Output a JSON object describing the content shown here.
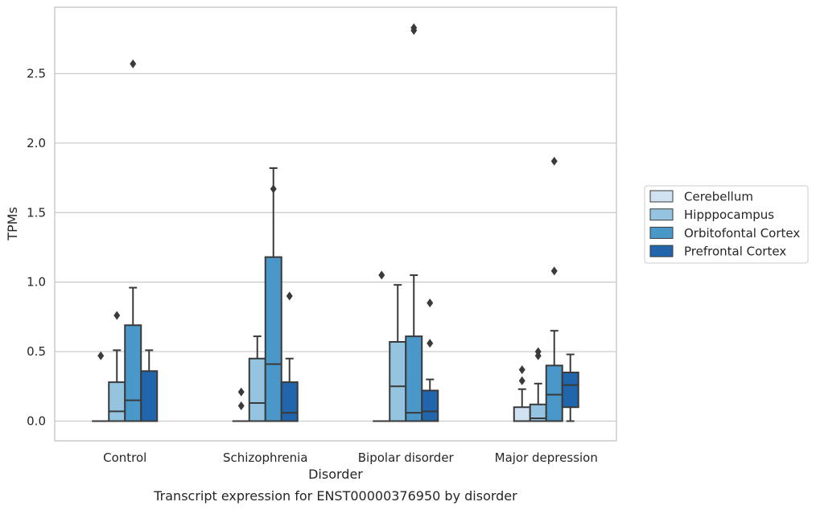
{
  "chart_data": {
    "type": "box",
    "title": "",
    "caption": "Transcript expression for ENST00000376950 by disorder",
    "xlabel": "Disorder",
    "ylabel": "TPMs",
    "ylim": [
      -0.14,
      2.99
    ],
    "yticks": [
      "0.0",
      "0.5",
      "1.0",
      "1.5",
      "2.0",
      "2.5"
    ],
    "grid": true,
    "legend_position": "right",
    "categories": [
      "Control",
      "Schizophrenia",
      "Bipolar disorder",
      "Major depression"
    ],
    "series": [
      {
        "name": "Cerebellum",
        "color": "#d0e1f2",
        "boxes": [
          {
            "min": 0,
            "q1": 0,
            "median": 0,
            "q3": 0,
            "max": 0,
            "outliers": [
              0.47
            ]
          },
          {
            "min": 0,
            "q1": 0,
            "median": 0,
            "q3": 0,
            "max": 0,
            "outliers": [
              0.21,
              0.11
            ]
          },
          {
            "min": 0,
            "q1": 0,
            "median": 0,
            "q3": 0,
            "max": 0,
            "outliers": [
              1.05
            ]
          },
          {
            "min": 0,
            "q1": 0,
            "median": 0.0,
            "q3": 0.1,
            "max": 0.23,
            "outliers": [
              0.37,
              0.29
            ]
          }
        ]
      },
      {
        "name": "Hipppocampus",
        "color": "#94c4df",
        "boxes": [
          {
            "min": 0,
            "q1": 0,
            "median": 0.07,
            "q3": 0.28,
            "max": 0.51,
            "outliers": [
              0.76
            ]
          },
          {
            "min": 0,
            "q1": 0,
            "median": 0.13,
            "q3": 0.45,
            "max": 0.61,
            "outliers": []
          },
          {
            "min": 0,
            "q1": 0,
            "median": 0.25,
            "q3": 0.57,
            "max": 0.98,
            "outliers": []
          },
          {
            "min": 0,
            "q1": 0,
            "median": 0.02,
            "q3": 0.12,
            "max": 0.27,
            "outliers": [
              0.5,
              0.47
            ]
          }
        ]
      },
      {
        "name": "Orbitofontal Cortex",
        "color": "#4a98c9",
        "boxes": [
          {
            "min": 0,
            "q1": 0,
            "median": 0.15,
            "q3": 0.69,
            "max": 0.96,
            "outliers": [
              2.57
            ]
          },
          {
            "min": 0,
            "q1": 0,
            "median": 0.41,
            "q3": 1.18,
            "max": 1.82,
            "outliers": [
              1.67
            ]
          },
          {
            "min": 0,
            "q1": 0,
            "median": 0.06,
            "q3": 0.61,
            "max": 1.05,
            "outliers": [
              2.81,
              2.83
            ]
          },
          {
            "min": 0,
            "q1": 0,
            "median": 0.19,
            "q3": 0.4,
            "max": 0.65,
            "outliers": [
              1.87,
              1.08
            ]
          }
        ]
      },
      {
        "name": "Prefrontal Cortex",
        "color": "#2166ac",
        "boxes": [
          {
            "min": 0,
            "q1": 0,
            "median": 0,
            "q3": 0.36,
            "max": 0.51,
            "outliers": []
          },
          {
            "min": 0,
            "q1": 0,
            "median": 0.06,
            "q3": 0.28,
            "max": 0.45,
            "outliers": [
              0.9
            ]
          },
          {
            "min": 0,
            "q1": 0,
            "median": 0.07,
            "q3": 0.22,
            "max": 0.3,
            "outliers": [
              0.85,
              0.56
            ]
          },
          {
            "min": 0,
            "q1": 0.1,
            "median": 0.26,
            "q3": 0.35,
            "max": 0.48,
            "outliers": []
          }
        ]
      }
    ]
  }
}
